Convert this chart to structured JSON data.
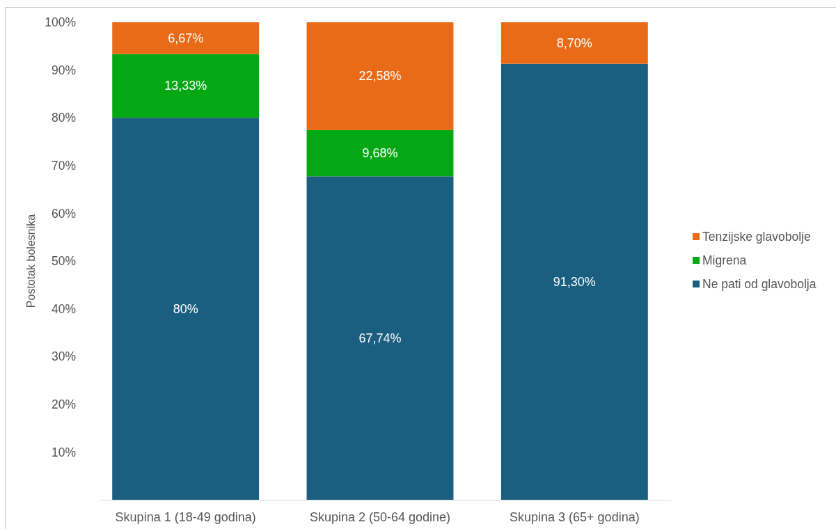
{
  "chart_data": {
    "type": "bar",
    "stacked": true,
    "categories": [
      "Skupina 1 (18-49 godina)",
      "Skupina 2 (50-64 godine)",
      "Skupina 3 (65+ godina)"
    ],
    "series": [
      {
        "name": "Ne pati od glavobolja",
        "color": "#1a5e80",
        "values": [
          80,
          67.74,
          91.3
        ],
        "value_labels": [
          "80%",
          "67,74%",
          "91,30%"
        ]
      },
      {
        "name": "Migrena",
        "color": "#04a815",
        "values": [
          13.33,
          9.68,
          null
        ],
        "value_labels": [
          "13,33%",
          "9,68%",
          null
        ]
      },
      {
        "name": "Tenzijske glavobolje",
        "color": "#ea6b17",
        "values": [
          6.67,
          22.58,
          8.7
        ],
        "value_labels": [
          "6,67%",
          "22,58%",
          "8,70%"
        ]
      }
    ],
    "ylabel": "Postotak bolesnika",
    "ylim": [
      0,
      100
    ],
    "yticks": [
      {
        "value": 10,
        "label": "10%"
      },
      {
        "value": 20,
        "label": "20%"
      },
      {
        "value": 30,
        "label": "30%"
      },
      {
        "value": 40,
        "label": "40%"
      },
      {
        "value": 50,
        "label": "50%"
      },
      {
        "value": 60,
        "label": "60%"
      },
      {
        "value": 70,
        "label": "70%"
      },
      {
        "value": 80,
        "label": "80%"
      },
      {
        "value": 90,
        "label": "90%"
      },
      {
        "value": 100,
        "label": "100%"
      }
    ],
    "legend": "right",
    "grid": false
  }
}
